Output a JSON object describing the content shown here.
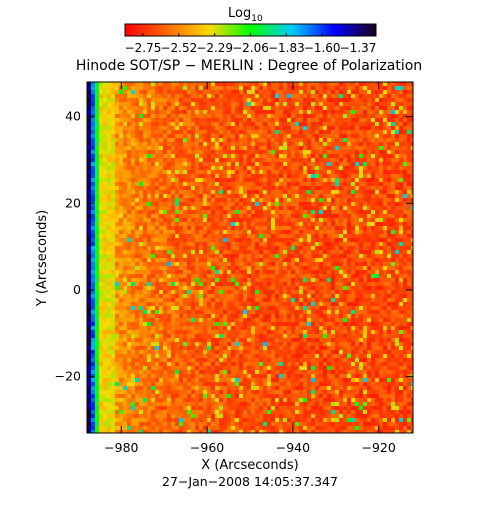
{
  "colorbar": {
    "label": "Log",
    "label_sub": "10",
    "ticks": [
      "−2.75",
      "−2.52",
      "−2.29",
      "−2.06",
      "−1.83",
      "−1.60",
      "−1.37"
    ],
    "colors": [
      "#ff0000",
      "#ff6a00",
      "#ffd800",
      "#00ff00",
      "#00ccff",
      "#0000ff",
      "#1a001a"
    ]
  },
  "chart_data": {
    "type": "heatmap",
    "title": "Hinode SOT/SP − MERLIN : Degree of Polarization",
    "xlabel": "X (Arcseconds)",
    "ylabel": "Y (Arcseconds)",
    "xlim": [
      -988,
      -912
    ],
    "ylim": [
      -33,
      48
    ],
    "xticks": [
      -980,
      -960,
      -940,
      -920
    ],
    "yticks": [
      -20,
      0,
      20,
      40
    ],
    "xtick_labels": [
      "−980",
      "−960",
      "−940",
      "−920"
    ],
    "ytick_labels": [
      "−20",
      "0",
      "20",
      "40"
    ],
    "value_range_log10": [
      -2.75,
      -1.37
    ],
    "timestamp": "27−Jan−2008 14:05:37.347"
  }
}
